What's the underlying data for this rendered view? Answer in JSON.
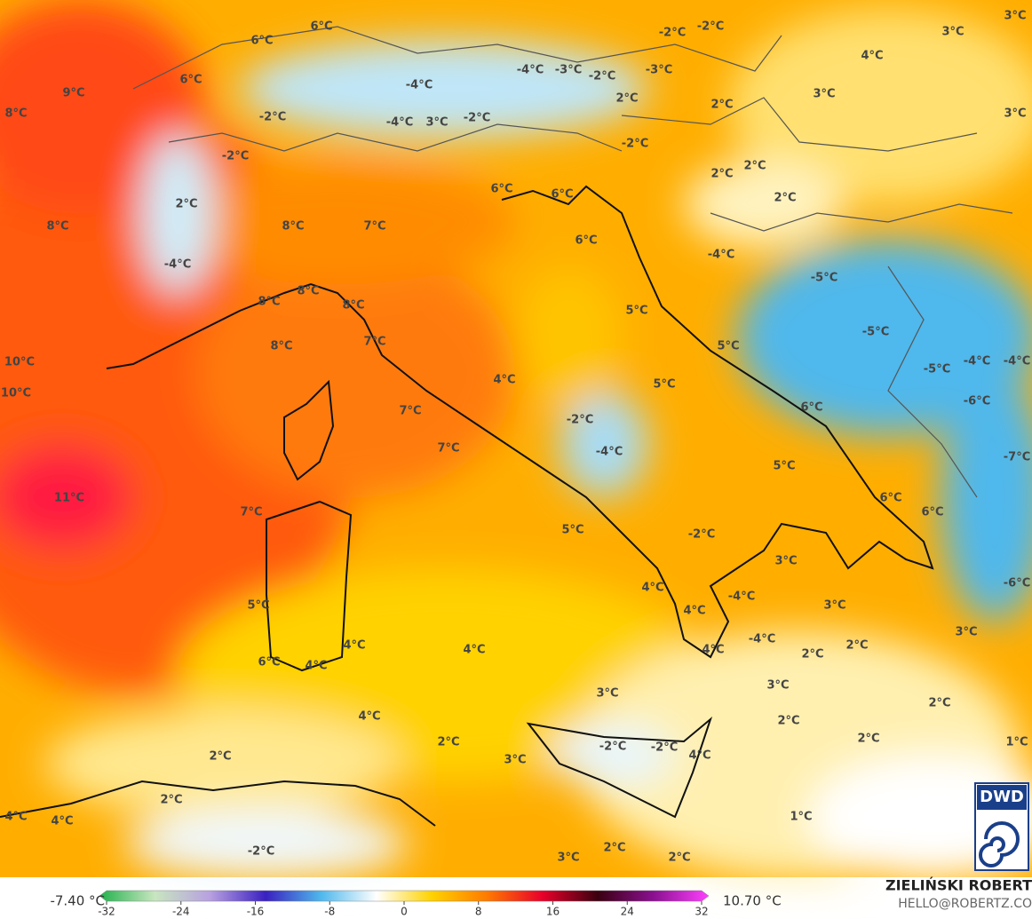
{
  "map": {
    "temperature_labels": [
      "9°C",
      "8°C",
      "6°C",
      "6°C",
      "6°C",
      "-2°C",
      "-2°C",
      "2°C",
      "8°C",
      "-4°C",
      "8°C",
      "7°C",
      "8°C",
      "8°C",
      "8°C",
      "8°C",
      "7°C",
      "10°C",
      "10°C",
      "7°C",
      "7°C",
      "11°C",
      "7°C",
      "5°C",
      "6°C",
      "4°C",
      "4°C",
      "4°C",
      "4°C",
      "2°C",
      "2°C",
      "4°C",
      "4°C",
      "-2°C",
      "2°C",
      "3°C",
      "3°C",
      "2°C",
      "2°C",
      "1°C",
      "3°C",
      "4°C",
      "-2°C",
      "-2°C",
      "5°C",
      "4°C",
      "4°C",
      "4°C",
      "-4°C",
      "-4°C",
      "-2°C",
      "3°C",
      "3°C",
      "2°C",
      "2°C",
      "3°C",
      "2°C",
      "2°C",
      "2°C",
      "1°C",
      "3°C",
      "6°C",
      "6°C",
      "5°C",
      "6°C",
      "5°C",
      "5°C",
      "5°C",
      "4°C",
      "-2°C",
      "-4°C",
      "-4°C",
      "-5°C",
      "-5°C",
      "-5°C",
      "-4°C",
      "-4°C",
      "-6°C",
      "-7°C",
      "-6°C",
      "2°C",
      "2°C",
      "2°C",
      "-2°C",
      "2°C",
      "2°C",
      "3°C",
      "4°C",
      "3°C",
      "3°C",
      "3°C",
      "-2°C",
      "-2°C",
      "-4°C",
      "-3°C",
      "-2°C",
      "-3°C",
      "-4°C",
      "-4°C",
      "3°C",
      "-2°C",
      "6°C",
      "6°C",
      "6°C"
    ],
    "colorbar": {
      "min_label": "-7.40 °C",
      "max_label": "10.70 °C",
      "range": [
        -32,
        32
      ],
      "ticks": [
        -32,
        -24,
        -16,
        -8,
        0,
        8,
        16,
        24,
        32
      ],
      "colors": [
        "#22b14c",
        "#c8e6c0",
        "#b8a0e0",
        "#3a20c0",
        "#4fb8ec",
        "#ffffff",
        "#ffd200",
        "#ff7a00",
        "#e8002a",
        "#3a0010",
        "#8a1090",
        "#ff40ff"
      ]
    },
    "author": "ZIELIŃSKI ROBERT",
    "contact": "HELLO@ROBERTZ.CO",
    "logo": "DWD"
  }
}
